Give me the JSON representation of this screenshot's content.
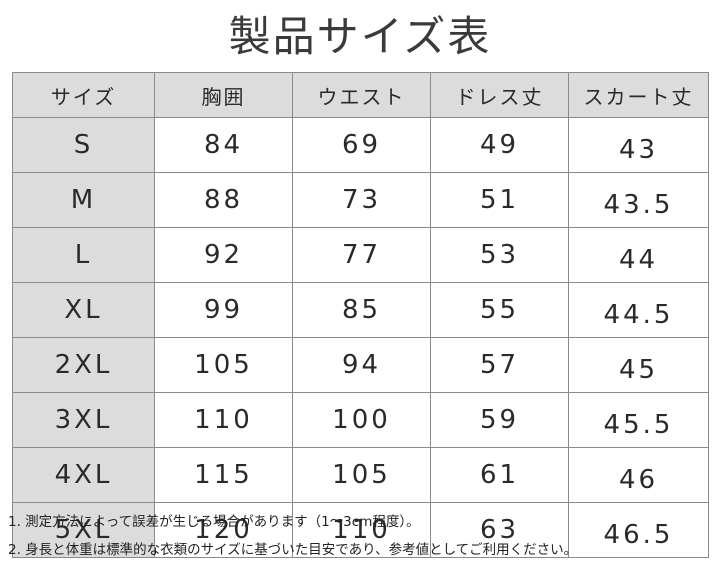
{
  "title": "製品サイズ表",
  "table": {
    "headers": [
      "サイズ",
      "胸囲",
      "ウエスト",
      "ドレス丈",
      "スカート丈"
    ],
    "rows": [
      [
        "S",
        "84",
        "69",
        "49",
        "43"
      ],
      [
        "M",
        "88",
        "73",
        "51",
        "43.5"
      ],
      [
        "L",
        "92",
        "77",
        "53",
        "44"
      ],
      [
        "XL",
        "99",
        "85",
        "55",
        "44.5"
      ],
      [
        "2XL",
        "105",
        "94",
        "57",
        "45"
      ],
      [
        "3XL",
        "110",
        "100",
        "59",
        "45.5"
      ],
      [
        "4XL",
        "115",
        "105",
        "61",
        "46"
      ],
      [
        "5XL",
        "120",
        "110",
        "63",
        "46.5"
      ]
    ]
  },
  "notes": [
    "1. 測定方法によって誤差が生じる場合があります（1〜3cm程度）。",
    "2. 身長と体重は標準的な衣類のサイズに基づいた目安であり、参考値としてご利用ください。"
  ],
  "colors": {
    "header_bg": "#dcdcdc",
    "border": "#8a8a8a",
    "text": "#2a2a2a"
  }
}
